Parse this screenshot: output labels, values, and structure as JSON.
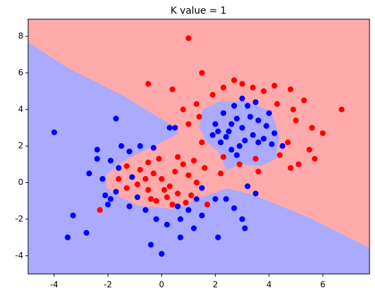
{
  "chart_data": {
    "type": "scatter",
    "title": "K value = 1",
    "xlim": [
      -4.97,
      7.74
    ],
    "ylim": [
      -5.0,
      8.94
    ],
    "xticks": [
      -4,
      -2,
      0,
      2,
      4,
      6
    ],
    "yticks": [
      -4,
      -2,
      0,
      2,
      4,
      6,
      8
    ],
    "series": [
      {
        "color": "#0000ff",
        "x": [
          -4,
          -3.5,
          -2.8,
          -3.3,
          -2.7,
          -2.4,
          -2.4,
          -2.2,
          -2.1,
          -1.9,
          -2,
          -1.7,
          -1.6,
          -1.9,
          -1.5,
          -1.7,
          -1.2,
          -1.1,
          -0.9,
          -1.2,
          -0.8,
          -0.6,
          -0.4,
          -0.3,
          0.3,
          0.5,
          0.6,
          0.7,
          1,
          1.3,
          1.5,
          1.2,
          1.5,
          2,
          2.1,
          2.4,
          2.7,
          3,
          3.1,
          3.5,
          0,
          0.7,
          0.2,
          -0.2,
          3.2,
          2.6,
          2.2,
          2.0,
          2.5,
          2.8,
          3.0,
          3.2,
          3.4,
          3.6,
          3.8,
          4,
          2.3,
          2.7,
          3.1,
          3.9,
          2.4,
          3.3,
          2.9,
          4.2,
          2.1,
          3.6,
          3.5,
          1.9,
          2.6,
          4.5,
          2.8,
          3.0,
          4.1
        ],
        "y": [
          2.75,
          -3,
          -2.75,
          -1.8,
          0.5,
          1.8,
          1.3,
          0.2,
          -0.7,
          -0.9,
          -1.2,
          -0.5,
          0.8,
          1.2,
          2,
          3.5,
          1.7,
          0.3,
          -0.8,
          -1.3,
          2,
          -1.5,
          -3.4,
          1.9,
          3,
          3,
          -1.3,
          -2,
          -1.5,
          -0.9,
          -0.3,
          -2.5,
          -1.8,
          -0.9,
          -3,
          -0.9,
          -1.4,
          -2,
          -2.5,
          -0.6,
          -3.9,
          -3,
          -2.3,
          -2,
          -0.2,
          1.8,
          2.2,
          3.2,
          2.8,
          3.5,
          3.0,
          4.2,
          2.6,
          3.4,
          2.4,
          3.8,
          3.8,
          4.2,
          2.3,
          3.1,
          2.5,
          3.6,
          2.0,
          2.7,
          2.8,
          2.2,
          4.4,
          2.6,
          3.2,
          2.0,
          1.5,
          4.6,
          2.1
        ]
      },
      {
        "color": "#ff0000",
        "x": [
          1,
          1.5,
          -0.5,
          0.4,
          1.3,
          1.9,
          2.3,
          2.7,
          3.0,
          3.4,
          3.8,
          4.2,
          4.8,
          5.3,
          6.7,
          6.0,
          5.5,
          5.7,
          5.1,
          4.7,
          4.4,
          3.5,
          2.9,
          2.3,
          1.5,
          1.0,
          0.8,
          1.4,
          5.0,
          4.9,
          4.3,
          5.6,
          3.6,
          4.8,
          -2.3,
          -1.3,
          -1.6,
          -1.3,
          -0.8,
          -0.5,
          -0.3,
          0,
          0.3,
          0.5,
          0.8,
          1,
          1.3,
          0.6,
          0.2,
          -0.2,
          -0.5,
          -0.9,
          0.4,
          1.1,
          1.6,
          1.2,
          -0.1,
          0.9,
          -0.6,
          0.1,
          1.7,
          2.2,
          0.6,
          -0.4
        ],
        "y": [
          7.9,
          6,
          5.4,
          5.1,
          4.3,
          4.8,
          5.2,
          5.6,
          5.4,
          5.2,
          5.0,
          5.3,
          5.1,
          4.5,
          4,
          2.7,
          1.8,
          1.3,
          1.0,
          2.2,
          1.5,
          1.3,
          1.0,
          1.4,
          2.2,
          3.2,
          4.0,
          3.6,
          3.4,
          4.0,
          4.3,
          3.0,
          0.6,
          0.8,
          -1.5,
          -0.3,
          0.2,
          0.9,
          0.7,
          1.1,
          0.5,
          0.2,
          -0.2,
          0.6,
          1.0,
          0.4,
          0,
          -0.6,
          -0.8,
          -1,
          -0.4,
          -0.1,
          -1.2,
          -0.7,
          0.8,
          1.2,
          1.3,
          -1.1,
          0.2,
          -0.4,
          -1.2,
          0.5,
          1.4,
          -0.9
        ]
      }
    ]
  }
}
